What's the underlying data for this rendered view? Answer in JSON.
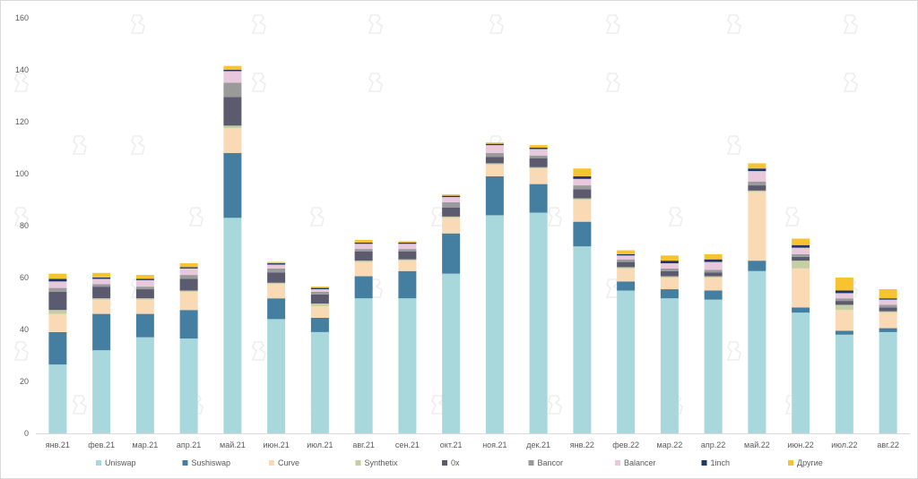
{
  "chart_data": {
    "type": "bar",
    "stacked": true,
    "title": "",
    "xlabel": "",
    "ylabel": "",
    "ylim": [
      0,
      160
    ],
    "yticks": [
      0,
      20,
      40,
      60,
      80,
      100,
      120,
      140,
      160
    ],
    "grid": false,
    "legend_position": "bottom",
    "categories": [
      "янв.21",
      "фев.21",
      "мар.21",
      "апр.21",
      "май.21",
      "июн.21",
      "июл.21",
      "авг.21",
      "сен.21",
      "окт.21",
      "ноя.21",
      "дек.21",
      "янв.22",
      "фев.22",
      "мар.22",
      "апр.22",
      "май.22",
      "июн.22",
      "июл.22",
      "авг.22"
    ],
    "series": [
      {
        "name": "Uniswap",
        "color": "#a8d8dc",
        "values": [
          26.5,
          32,
          37,
          36.5,
          83,
          44,
          39,
          52,
          52,
          61.5,
          84,
          85,
          72,
          55,
          52,
          51.5,
          62.5,
          46.5,
          38,
          39
        ]
      },
      {
        "name": "Sushiswap",
        "color": "#447ea1",
        "values": [
          12.5,
          14,
          9,
          11,
          25,
          8,
          5.5,
          8.5,
          10.5,
          15.5,
          15,
          11,
          9.5,
          3.5,
          3.5,
          3.5,
          4,
          2,
          1.5,
          1.5
        ]
      },
      {
        "name": "Curve",
        "color": "#fad9b5",
        "values": [
          7,
          5.5,
          5.5,
          7,
          9.5,
          5.5,
          4.5,
          5.5,
          4,
          6,
          4.5,
          6,
          8.5,
          5,
          4.5,
          5,
          26.5,
          15,
          8,
          6
        ]
      },
      {
        "name": "Synthetix",
        "color": "#c5cfa4",
        "values": [
          1.5,
          0.5,
          0.5,
          0.5,
          1,
          0.5,
          1,
          0.5,
          0.5,
          0.5,
          0.5,
          0.5,
          0.5,
          0.5,
          0.5,
          0.5,
          0.5,
          3,
          2,
          0.5
        ]
      },
      {
        "name": "0x",
        "color": "#5c5a6e",
        "values": [
          7,
          4.5,
          3.5,
          4.5,
          11,
          4,
          3.5,
          3.5,
          3,
          3.5,
          2.5,
          3.5,
          3.5,
          2,
          2,
          1.5,
          2,
          1.5,
          1.5,
          1.5
        ]
      },
      {
        "name": "Bancor",
        "color": "#9a9a9a",
        "values": [
          1.5,
          1,
          1,
          1.5,
          5.5,
          1.5,
          1,
          1,
          1,
          2,
          1.5,
          1,
          1.5,
          1,
          1,
          1,
          1.5,
          1,
          1,
          1
        ]
      },
      {
        "name": "Balancer",
        "color": "#e8c8dc",
        "values": [
          2.5,
          2,
          2.5,
          2.5,
          4.5,
          1.5,
          1,
          2,
          2,
          2,
          3,
          2.5,
          2.5,
          1.5,
          2,
          3,
          4,
          2.5,
          2,
          2
        ]
      },
      {
        "name": "1inch",
        "color": "#1f3864",
        "values": [
          1,
          0.5,
          0.5,
          0.5,
          0.5,
          0.5,
          0.5,
          0.5,
          0.5,
          0.5,
          0.5,
          0.5,
          1,
          0.5,
          1,
          1,
          1,
          1,
          1,
          0.5
        ]
      },
      {
        "name": "Другие",
        "color": "#f7c330",
        "values": [
          2,
          1.8,
          1.5,
          1.5,
          1.5,
          0.5,
          0.5,
          1,
          0.5,
          0.5,
          0.5,
          1,
          3,
          1.5,
          2,
          2,
          2,
          2.5,
          5,
          3.5
        ]
      }
    ]
  }
}
